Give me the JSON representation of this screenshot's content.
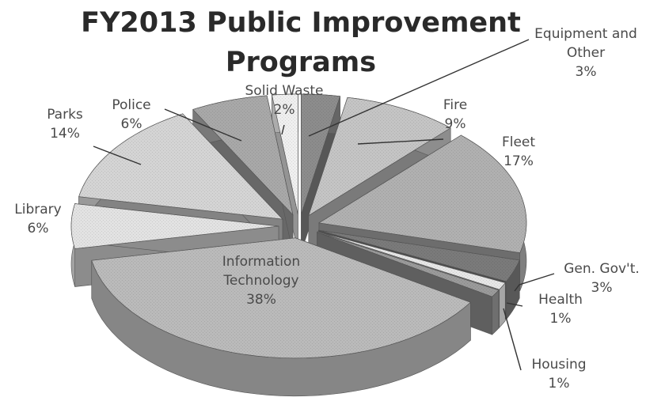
{
  "chart_data": {
    "type": "pie",
    "title_lines": [
      "FY2013 Public Improvement",
      "Programs"
    ],
    "categories": [
      "Equipment and Other",
      "Fire",
      "Fleet",
      "Gen. Gov't.",
      "Health",
      "Housing",
      "Information Technology",
      "Library",
      "Parks",
      "Police",
      "Solid Waste"
    ],
    "values": [
      3,
      9,
      17,
      3,
      1,
      1,
      38,
      6,
      14,
      6,
      2
    ],
    "labels": [
      {
        "lines": [
          "Equipment and",
          "Other",
          "3%"
        ]
      },
      {
        "lines": [
          "Fire",
          "9%"
        ]
      },
      {
        "lines": [
          "Fleet",
          "17%"
        ]
      },
      {
        "lines": [
          "Gen. Gov't.",
          "3%"
        ]
      },
      {
        "lines": [
          "Health",
          "1%"
        ]
      },
      {
        "lines": [
          "Housing",
          "1%"
        ]
      },
      {
        "lines": [
          "Information",
          "Technology",
          "38%"
        ]
      },
      {
        "lines": [
          "Library",
          "6%"
        ]
      },
      {
        "lines": [
          "Parks",
          "14%"
        ]
      },
      {
        "lines": [
          "Police",
          "6%"
        ]
      },
      {
        "lines": [
          "Solid Waste",
          "2%"
        ]
      }
    ],
    "style": "3d-exploded",
    "colors": {
      "Equipment and Other": "#8c8c8c",
      "Fire": "#c4c4c4",
      "Fleet": "#b0b0b0",
      "Gen. Gov't.": "#7a7a7a",
      "Health": "#e6e6e6",
      "Housing": "#9a9a9a",
      "Information Technology": "#bababa",
      "Library": "#e2e2e2",
      "Parks": "#d4d4d4",
      "Police": "#a8a8a8",
      "Solid Waste": "#efefef"
    }
  }
}
